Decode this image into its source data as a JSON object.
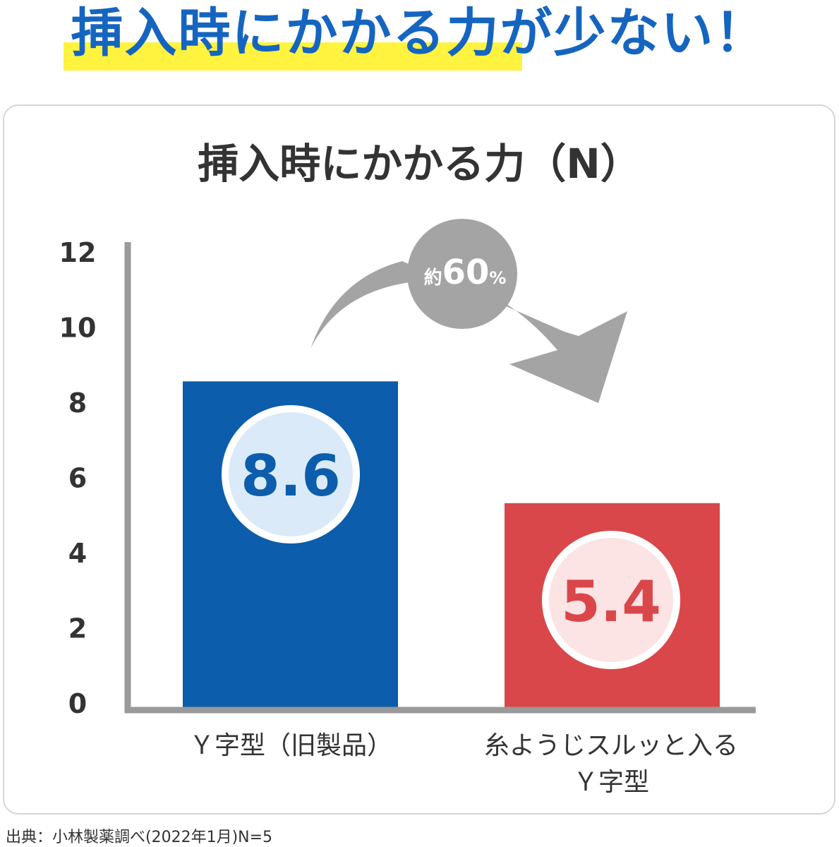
{
  "headline": "挿入時にかかる力が少ない！",
  "source_note": "出典：小林製薬調べ(2022年1月)N=5",
  "callout": {
    "prefix": "約",
    "value": "60",
    "suffix": "%"
  },
  "colors": {
    "headline": "#1565c0",
    "highlight": "#fff33f",
    "bar_old": "#0c5dab",
    "bar_new": "#d9474a",
    "axis": "#9a9a9a",
    "arrow": "#a4a4a4",
    "badge_old_fill": "#daeaf9",
    "badge_new_fill": "#fce3e4"
  },
  "chart_data": {
    "type": "bar",
    "title": "挿入時にかかる力（N）",
    "categories": [
      [
        "Ｙ字型（旧製品）"
      ],
      [
        "糸ようじスルッと入る",
        "Ｙ字型"
      ]
    ],
    "values": [
      8.6,
      5.4
    ],
    "value_labels": [
      "8.6",
      "5.4"
    ],
    "yticks": [
      "0",
      "2",
      "4",
      "6",
      "8",
      "10",
      "12"
    ],
    "ylim": [
      0,
      12
    ],
    "grid": false
  }
}
